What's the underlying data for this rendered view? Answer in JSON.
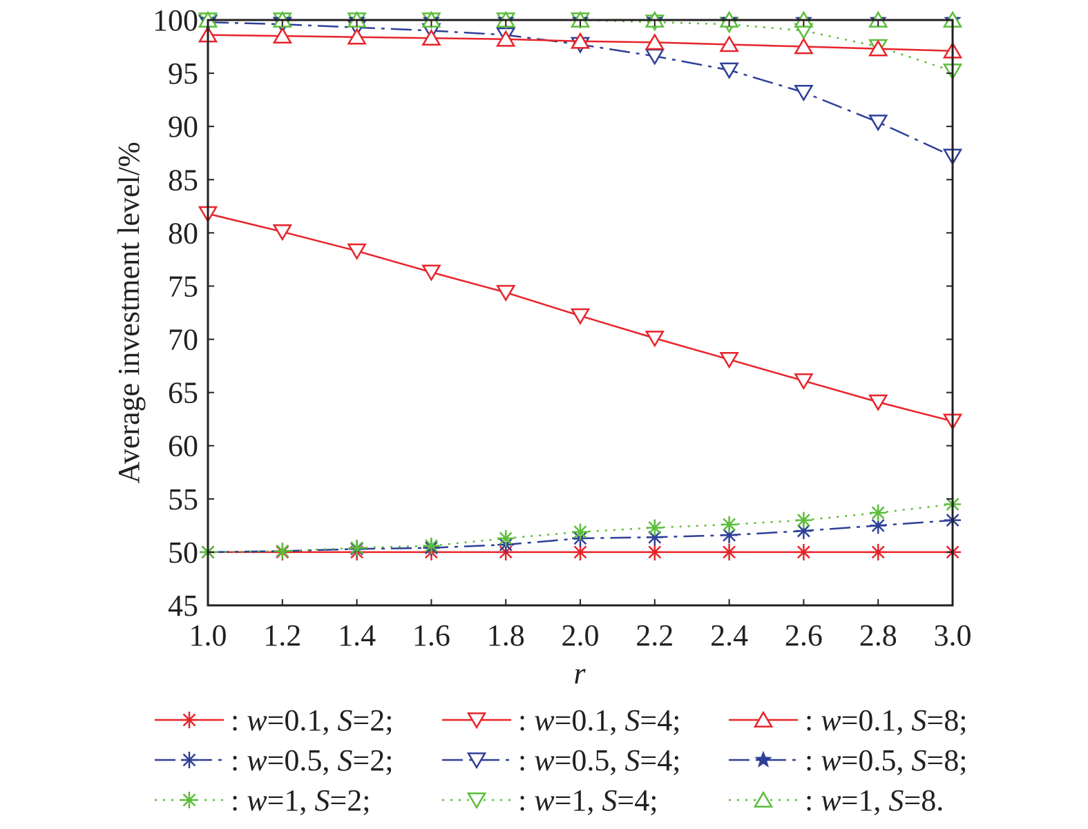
{
  "chart_data": {
    "type": "line",
    "xlabel": "r",
    "ylabel": "Average investment level/%",
    "xlim": [
      1.0,
      3.0
    ],
    "ylim": [
      45,
      100
    ],
    "x": [
      1.0,
      1.2,
      1.4,
      1.6,
      1.8,
      2.0,
      2.2,
      2.4,
      2.6,
      2.8,
      3.0
    ],
    "x_tick_labels": [
      "1.0",
      "1.2",
      "1.4",
      "1.6",
      "1.8",
      "2.0",
      "2.2",
      "2.4",
      "2.6",
      "2.8",
      "3.0"
    ],
    "y_ticks": [
      45,
      50,
      55,
      60,
      65,
      70,
      75,
      80,
      85,
      90,
      95,
      100
    ],
    "y_tick_labels": [
      "45",
      "50",
      "55",
      "60",
      "65",
      "70",
      "75",
      "80",
      "85",
      "90",
      "95",
      "100"
    ],
    "grid": false,
    "legend_position": "bottom",
    "series": [
      {
        "name": ": w=0.1, S=2;",
        "w": "0.1",
        "S": "2",
        "end": ";",
        "color": "#e8232a",
        "line": "solid",
        "marker": "asterisk",
        "values": [
          50,
          50,
          50,
          50,
          50,
          50,
          50,
          50,
          50,
          50,
          50
        ]
      },
      {
        "name": ": w=0.5, S=2;",
        "w": "0.5",
        "S": "2",
        "end": ";",
        "color": "#2e3f97",
        "line": "dashdot",
        "marker": "asterisk",
        "values": [
          50,
          50.1,
          50.3,
          50.4,
          50.7,
          51.3,
          51.4,
          51.6,
          52,
          52.5,
          53
        ]
      },
      {
        "name": ": w=1, S=2;",
        "w": "1",
        "S": "2",
        "end": ";",
        "color": "#5bbd3a",
        "line": "dotted",
        "marker": "asterisk",
        "values": [
          50,
          50.1,
          50.4,
          50.6,
          51.3,
          51.9,
          52.3,
          52.6,
          53,
          53.7,
          54.5
        ]
      },
      {
        "name": ": w=0.1, S=4;",
        "w": "0.1",
        "S": "4",
        "end": ";",
        "color": "#e8232a",
        "line": "solid",
        "marker": "triangle-down",
        "values": [
          81.8,
          80.1,
          78.3,
          76.3,
          74.4,
          72.2,
          70.1,
          68.1,
          66.1,
          64.1,
          62.3
        ]
      },
      {
        "name": ": w=0.5, S=4;",
        "w": "0.5",
        "S": "4",
        "end": ";",
        "color": "#2e3f97",
        "line": "dashdot",
        "marker": "triangle-down",
        "values": [
          99.8,
          99.6,
          99.3,
          99,
          98.6,
          97.7,
          96.6,
          95.3,
          93.2,
          90.4,
          87.2
        ]
      },
      {
        "name": ": w=1, S=4;",
        "w": "1",
        "S": "4",
        "end": ";",
        "color": "#5bbd3a",
        "line": "dotted",
        "marker": "triangle-down",
        "values": [
          100,
          100,
          100,
          100,
          100,
          100,
          99.8,
          99.6,
          99,
          97.5,
          95.2
        ]
      },
      {
        "name": ": w=0.1, S=8;",
        "w": "0.1",
        "S": "8",
        "end": ";",
        "color": "#e8232a",
        "line": "solid",
        "marker": "triangle-up",
        "values": [
          98.6,
          98.5,
          98.4,
          98.3,
          98.2,
          98.0,
          97.9,
          97.7,
          97.5,
          97.3,
          97.1
        ]
      },
      {
        "name": ": w=0.5, S=8;",
        "w": "0.5",
        "S": "8",
        "end": ";",
        "color": "#2e3f97",
        "line": "dashdot",
        "marker": "star",
        "values": [
          100,
          100,
          100,
          100,
          100,
          100,
          100,
          100,
          100,
          100,
          100
        ]
      },
      {
        "name": ": w=1, S=8.",
        "w": "1",
        "S": "8",
        "end": ".",
        "color": "#5bbd3a",
        "line": "dotted",
        "marker": "triangle-up",
        "values": [
          100,
          100,
          100,
          100,
          100,
          100,
          100,
          100,
          100,
          100,
          100
        ]
      }
    ]
  }
}
